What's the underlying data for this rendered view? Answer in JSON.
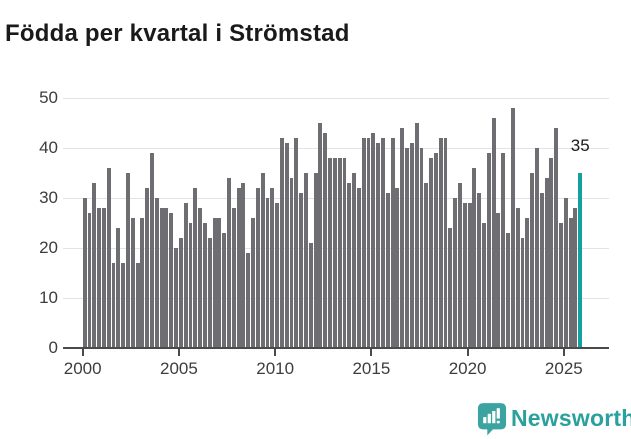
{
  "title": "Födda per kvartal i Strömstad",
  "chart_data": {
    "type": "bar",
    "title": "Födda per kvartal i Strömstad",
    "x_start": "2000 Q1",
    "x_end": "2025 Q4",
    "x_tick_labels": [
      "2000",
      "2005",
      "2010",
      "2015",
      "2020",
      "2025"
    ],
    "y_ticks": [
      0,
      10,
      20,
      30,
      40,
      50
    ],
    "ylim": [
      0,
      52
    ],
    "grid": true,
    "bar_color": "#6d6d72",
    "highlight_color": "#12a0a0",
    "highlight_last_bar": true,
    "last_value_label": "35",
    "values": [
      30,
      27,
      33,
      28,
      28,
      36,
      17,
      24,
      17,
      35,
      26,
      17,
      26,
      32,
      39,
      30,
      28,
      28,
      27,
      20,
      22,
      29,
      25,
      32,
      28,
      25,
      22,
      26,
      26,
      23,
      34,
      28,
      32,
      33,
      19,
      26,
      32,
      35,
      30,
      32,
      29,
      42,
      41,
      34,
      42,
      31,
      35,
      21,
      35,
      45,
      43,
      38,
      38,
      38,
      38,
      33,
      35,
      32,
      42,
      42,
      43,
      41,
      42,
      31,
      42,
      32,
      44,
      40,
      41,
      45,
      40,
      33,
      38,
      39,
      42,
      42,
      24,
      30,
      33,
      29,
      29,
      36,
      31,
      25,
      39,
      46,
      27,
      39,
      23,
      48,
      28,
      22,
      26,
      35,
      40,
      31,
      34,
      38,
      44,
      25,
      30,
      26,
      28,
      35
    ]
  },
  "annotation": {
    "last_value": "35"
  },
  "branding": {
    "name": "Newsworthy",
    "icon": "newsworthy-speech-bubble-bar-chart-icon",
    "icon_color": "#3ba4a0",
    "text_color": "#2aa19d"
  }
}
